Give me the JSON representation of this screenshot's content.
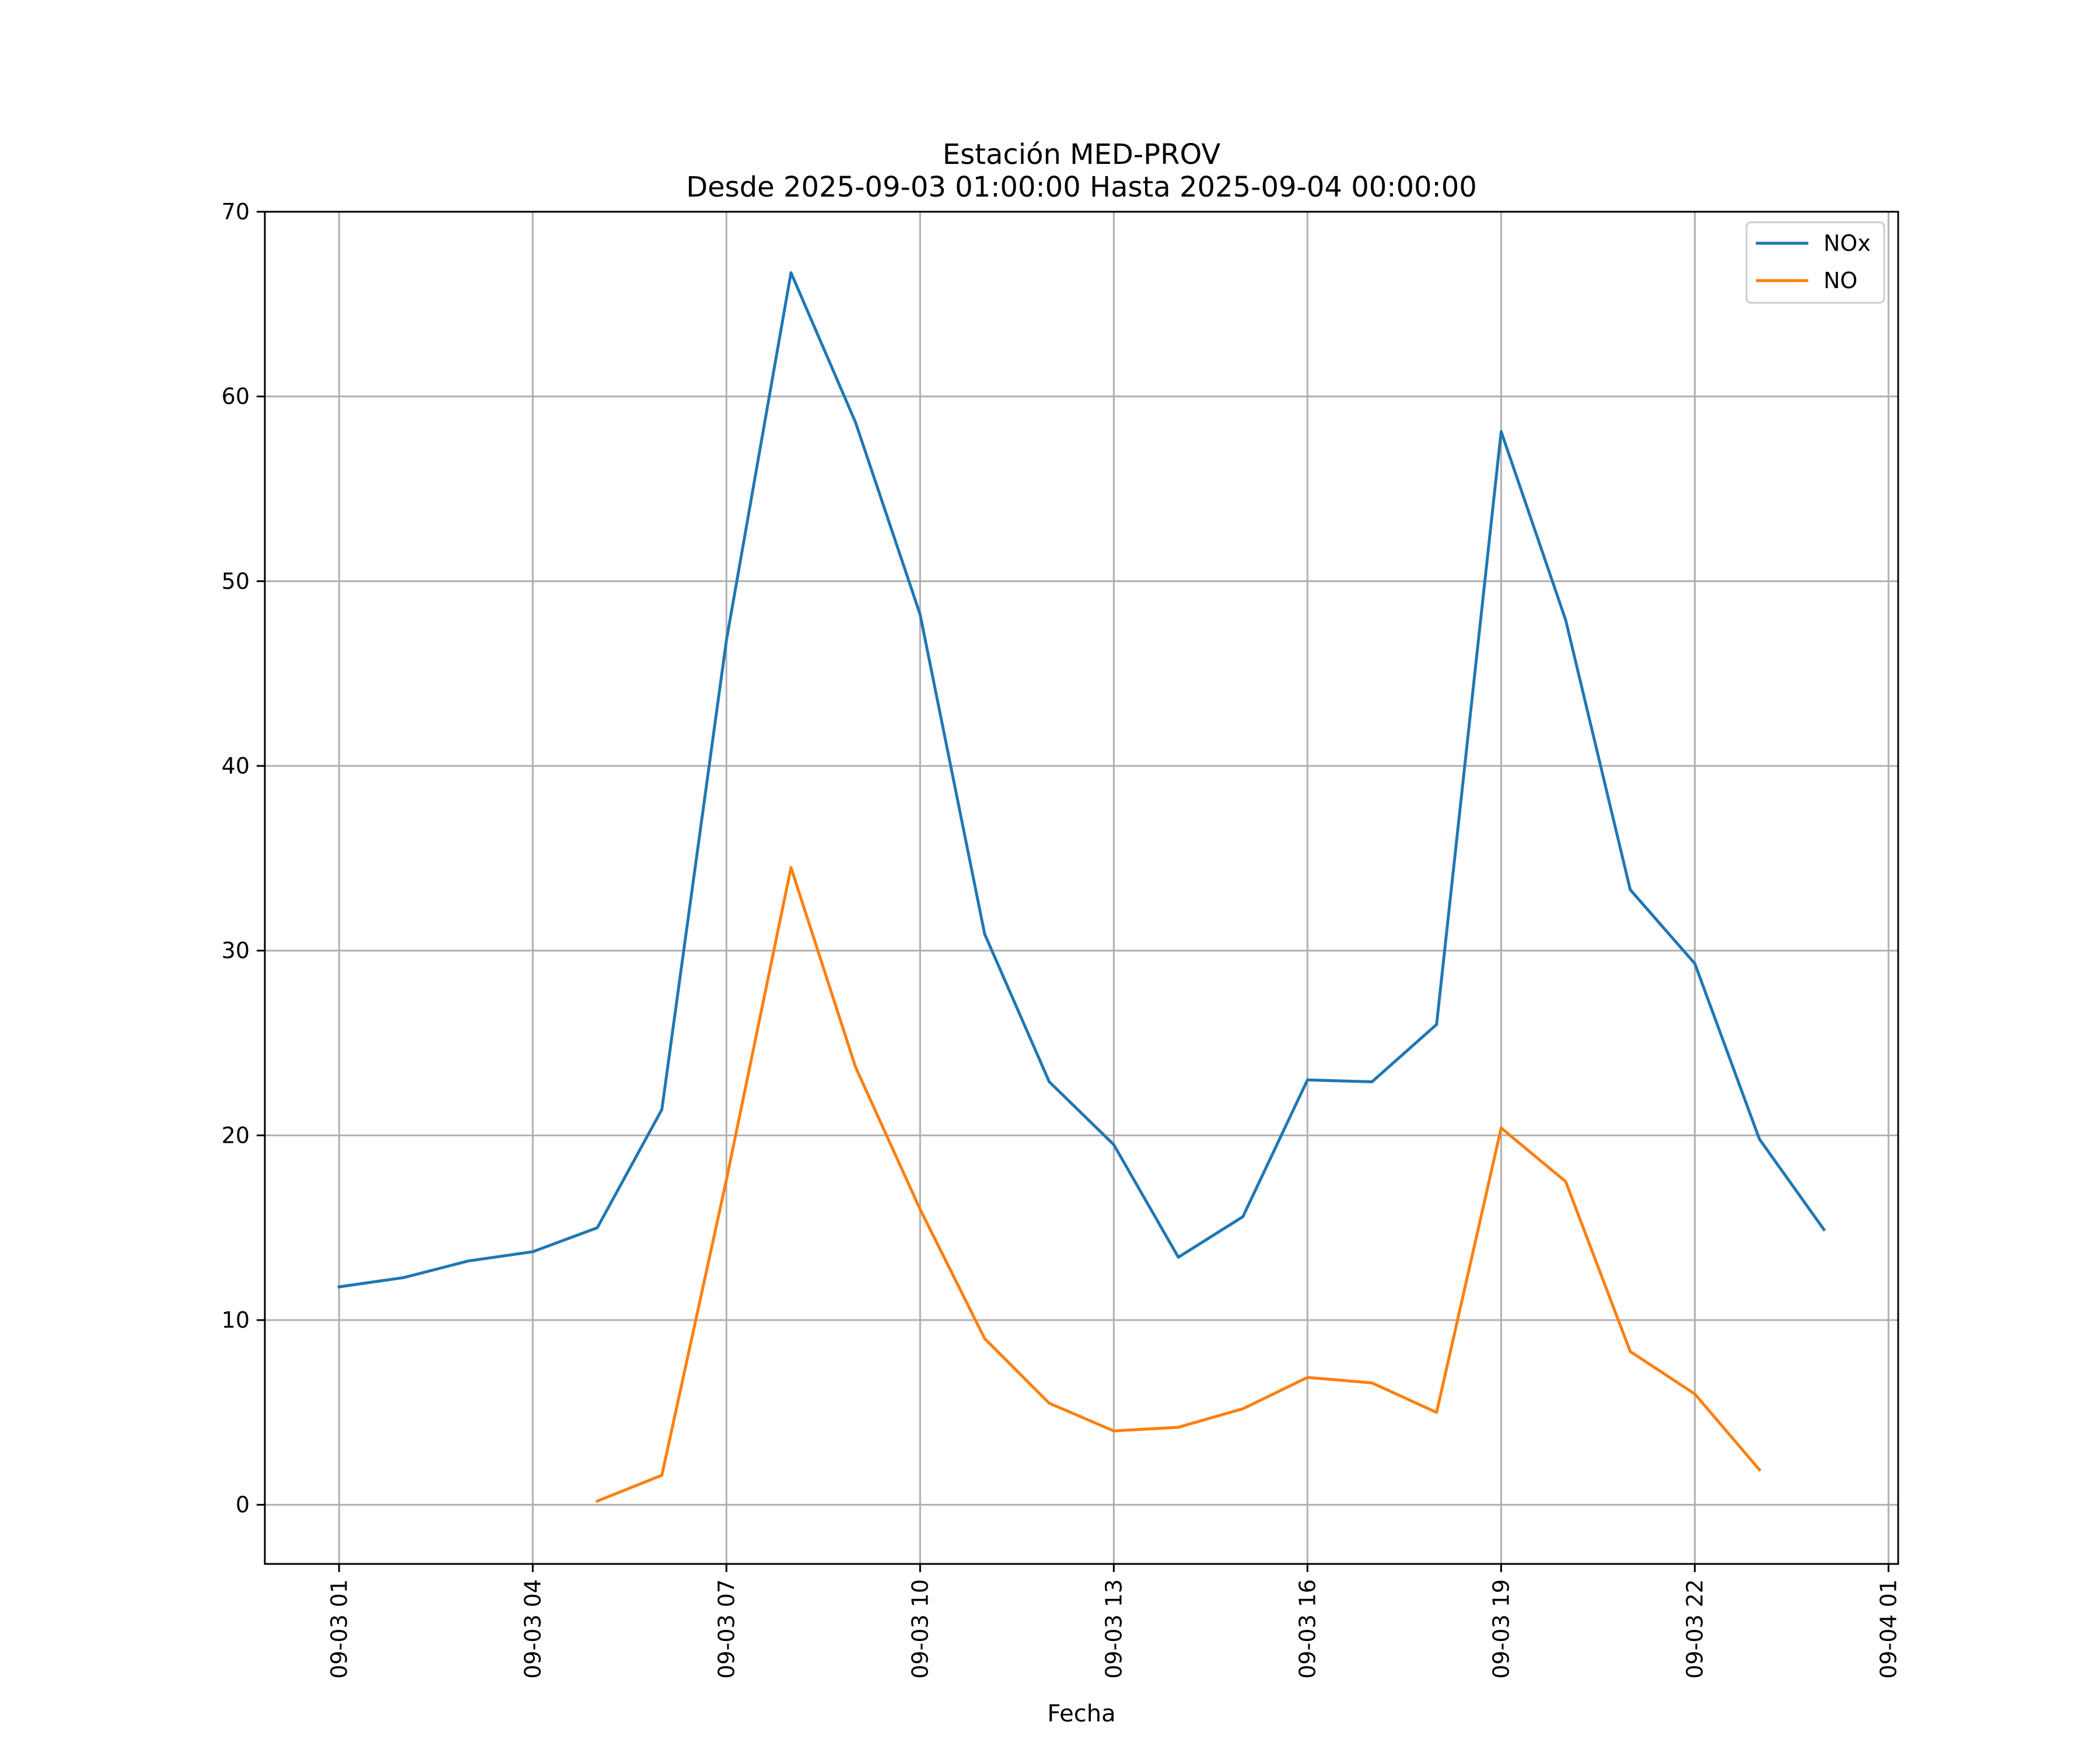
{
  "chart_data": {
    "type": "line",
    "title": "Estación MED-PROV",
    "subtitle": "Desde 2025-09-03 01:00:00 Hasta 2025-09-04 00:00:00",
    "xlabel": "Fecha",
    "ylabel": "",
    "x": [
      "2025-09-03 01:00",
      "2025-09-03 02:00",
      "2025-09-03 03:00",
      "2025-09-03 04:00",
      "2025-09-03 05:00",
      "2025-09-03 06:00",
      "2025-09-03 07:00",
      "2025-09-03 08:00",
      "2025-09-03 09:00",
      "2025-09-03 10:00",
      "2025-09-03 11:00",
      "2025-09-03 12:00",
      "2025-09-03 13:00",
      "2025-09-03 14:00",
      "2025-09-03 15:00",
      "2025-09-03 16:00",
      "2025-09-03 17:00",
      "2025-09-03 18:00",
      "2025-09-03 19:00",
      "2025-09-03 20:00",
      "2025-09-03 21:00",
      "2025-09-03 22:00",
      "2025-09-03 23:00",
      "2025-09-04 00:00"
    ],
    "series": [
      {
        "name": "NOx",
        "color": "#1f77b4",
        "values": [
          11.8,
          12.3,
          13.2,
          13.7,
          15.0,
          21.4,
          46.8,
          66.7,
          58.6,
          48.2,
          30.9,
          22.9,
          19.5,
          13.4,
          15.6,
          23.0,
          22.9,
          26.0,
          58.1,
          47.9,
          33.3,
          29.3,
          19.8,
          14.9
        ]
      },
      {
        "name": "NO",
        "color": "#ff7f0e",
        "values": [
          null,
          null,
          null,
          null,
          0.2,
          1.6,
          17.6,
          34.5,
          23.7,
          16.0,
          9.0,
          5.5,
          4.0,
          4.2,
          5.2,
          6.9,
          6.6,
          5.0,
          20.4,
          17.5,
          8.3,
          6.0,
          1.9,
          null
        ]
      }
    ],
    "xticks": [
      "09-03 01",
      "09-03 04",
      "09-03 07",
      "09-03 10",
      "09-03 13",
      "09-03 16",
      "09-03 19",
      "09-03 22",
      "09-04 01"
    ],
    "xlim": [
      "2025-09-02 23:51",
      "2025-09-04 01:09"
    ],
    "yticks": [
      0,
      10,
      20,
      30,
      40,
      50,
      60,
      70
    ],
    "ylim": [
      -3.2,
      70
    ],
    "grid": true,
    "legend": "top-right"
  }
}
